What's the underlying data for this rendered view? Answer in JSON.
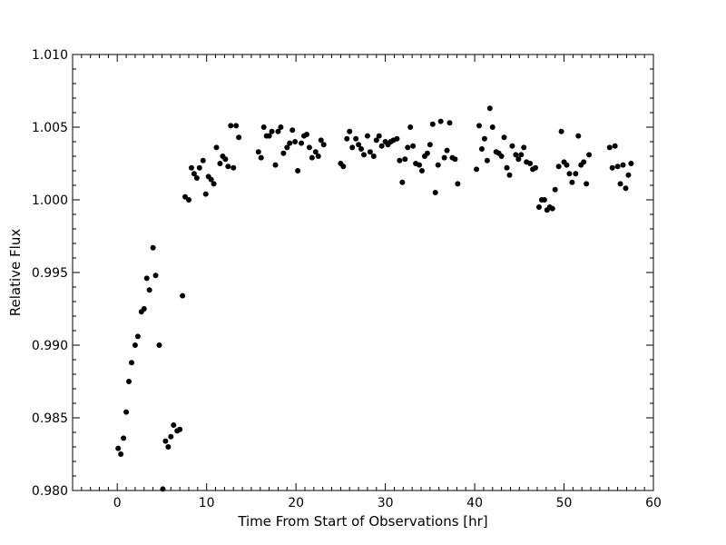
{
  "chart_data": {
    "type": "scatter",
    "title": "",
    "xlabel": "Time From Start of Observations [hr]",
    "ylabel": "Relative Flux",
    "xlim": [
      -5,
      60
    ],
    "ylim": [
      0.98,
      1.01
    ],
    "x_ticks": [
      0,
      10,
      20,
      30,
      40,
      50,
      60
    ],
    "x_tick_labels": [
      "0",
      "10",
      "20",
      "30",
      "40",
      "50",
      "60"
    ],
    "y_ticks": [
      0.98,
      0.985,
      0.99,
      0.995,
      1.0,
      1.005,
      1.01
    ],
    "y_tick_labels": [
      "0.980",
      "0.985",
      "0.990",
      "0.995",
      "1.000",
      "1.005",
      "1.010"
    ],
    "grid": false,
    "marker_color": "#000000",
    "series": [
      {
        "points": [
          [
            0.1,
            0.9829
          ],
          [
            0.4,
            0.9825
          ],
          [
            0.7,
            0.9836
          ],
          [
            1.0,
            0.9854
          ],
          [
            1.3,
            0.9875
          ],
          [
            1.6,
            0.9888
          ],
          [
            2.0,
            0.99
          ],
          [
            2.3,
            0.9906
          ],
          [
            2.7,
            0.9923
          ],
          [
            3.0,
            0.9925
          ],
          [
            3.3,
            0.9946
          ],
          [
            3.6,
            0.9938
          ],
          [
            4.0,
            0.9967
          ],
          [
            4.3,
            0.9948
          ],
          [
            4.7,
            0.99
          ],
          [
            5.1,
            0.9801
          ],
          [
            5.4,
            0.9834
          ],
          [
            5.7,
            0.983
          ],
          [
            6.0,
            0.9837
          ],
          [
            6.3,
            0.9845
          ],
          [
            6.7,
            0.9841
          ],
          [
            7.0,
            0.9842
          ],
          [
            7.3,
            0.9934
          ],
          [
            7.6,
            1.0002
          ],
          [
            8.0,
            1.0
          ],
          [
            8.3,
            1.0022
          ],
          [
            8.6,
            1.0018
          ],
          [
            8.9,
            1.0015
          ],
          [
            9.2,
            1.0022
          ],
          [
            9.6,
            1.0027
          ],
          [
            9.9,
            1.0004
          ],
          [
            10.2,
            1.0016
          ],
          [
            10.5,
            1.0014
          ],
          [
            10.8,
            1.0011
          ],
          [
            11.1,
            1.0036
          ],
          [
            11.5,
            1.0025
          ],
          [
            11.8,
            1.003
          ],
          [
            12.1,
            1.0028
          ],
          [
            12.4,
            1.0023
          ],
          [
            12.7,
            1.0051
          ],
          [
            13.0,
            1.0022
          ],
          [
            13.3,
            1.0051
          ],
          [
            13.6,
            1.0043
          ],
          [
            15.8,
            1.0033
          ],
          [
            16.1,
            1.0029
          ],
          [
            16.4,
            1.005
          ],
          [
            16.7,
            1.0044
          ],
          [
            17.0,
            1.0044
          ],
          [
            17.3,
            1.0047
          ],
          [
            17.7,
            1.0024
          ],
          [
            18.0,
            1.0047
          ],
          [
            18.3,
            1.005
          ],
          [
            18.6,
            1.0032
          ],
          [
            19.0,
            1.0036
          ],
          [
            19.3,
            1.0039
          ],
          [
            19.6,
            1.0048
          ],
          [
            19.9,
            1.004
          ],
          [
            20.2,
            1.002
          ],
          [
            20.6,
            1.0039
          ],
          [
            20.9,
            1.0044
          ],
          [
            21.2,
            1.0045
          ],
          [
            21.5,
            1.0036
          ],
          [
            21.8,
            1.0029
          ],
          [
            22.2,
            1.0033
          ],
          [
            22.5,
            1.003
          ],
          [
            22.8,
            1.0041
          ],
          [
            23.1,
            1.0038
          ],
          [
            25.0,
            1.0025
          ],
          [
            25.3,
            1.0023
          ],
          [
            25.7,
            1.0042
          ],
          [
            26.0,
            1.0047
          ],
          [
            26.3,
            1.0036
          ],
          [
            26.7,
            1.0042
          ],
          [
            27.0,
            1.0038
          ],
          [
            27.3,
            1.0035
          ],
          [
            27.6,
            1.0031
          ],
          [
            28.0,
            1.0044
          ],
          [
            28.3,
            1.0033
          ],
          [
            28.7,
            1.003
          ],
          [
            29.0,
            1.0041
          ],
          [
            29.3,
            1.0044
          ],
          [
            29.6,
            1.0037
          ],
          [
            30.0,
            1.004
          ],
          [
            30.3,
            1.0038
          ],
          [
            30.6,
            1.004
          ],
          [
            30.9,
            1.0041
          ],
          [
            31.3,
            1.0042
          ],
          [
            31.6,
            1.0027
          ],
          [
            31.9,
            1.0012
          ],
          [
            32.2,
            1.0028
          ],
          [
            32.5,
            1.0036
          ],
          [
            32.8,
            1.005
          ],
          [
            33.1,
            1.0037
          ],
          [
            33.4,
            1.0025
          ],
          [
            33.8,
            1.0024
          ],
          [
            34.1,
            1.002
          ],
          [
            34.4,
            1.003
          ],
          [
            34.7,
            1.0032
          ],
          [
            35.0,
            1.0038
          ],
          [
            35.3,
            1.0052
          ],
          [
            35.6,
            1.0005
          ],
          [
            35.9,
            1.0024
          ],
          [
            36.2,
            1.0054
          ],
          [
            36.6,
            1.0029
          ],
          [
            36.9,
            1.0034
          ],
          [
            37.2,
            1.0053
          ],
          [
            37.5,
            1.0029
          ],
          [
            37.8,
            1.0028
          ],
          [
            38.1,
            1.0011
          ],
          [
            40.2,
            1.0021
          ],
          [
            40.5,
            1.0051
          ],
          [
            40.8,
            1.0035
          ],
          [
            41.1,
            1.0042
          ],
          [
            41.4,
            1.0027
          ],
          [
            41.7,
            1.0063
          ],
          [
            42.0,
            1.005
          ],
          [
            42.4,
            1.0033
          ],
          [
            42.7,
            1.0032
          ],
          [
            43.0,
            1.003
          ],
          [
            43.3,
            1.0043
          ],
          [
            43.6,
            1.0022
          ],
          [
            43.9,
            1.0017
          ],
          [
            44.2,
            1.0037
          ],
          [
            44.6,
            1.0031
          ],
          [
            44.9,
            1.0028
          ],
          [
            45.2,
            1.0031
          ],
          [
            45.5,
            1.0036
          ],
          [
            45.8,
            1.0026
          ],
          [
            46.2,
            1.0025
          ],
          [
            46.5,
            1.0021
          ],
          [
            46.8,
            1.0022
          ],
          [
            47.2,
            0.9995
          ],
          [
            47.5,
            1.0
          ],
          [
            47.8,
            1.0
          ],
          [
            48.1,
            0.9993
          ],
          [
            48.4,
            0.9995
          ],
          [
            48.7,
            0.9994
          ],
          [
            49.0,
            1.0007
          ],
          [
            49.4,
            1.0023
          ],
          [
            49.7,
            1.0047
          ],
          [
            50.0,
            1.0026
          ],
          [
            50.3,
            1.0024
          ],
          [
            50.6,
            1.0018
          ],
          [
            50.9,
            1.0012
          ],
          [
            51.3,
            1.0018
          ],
          [
            51.6,
            1.0044
          ],
          [
            51.9,
            1.0024
          ],
          [
            52.2,
            1.0026
          ],
          [
            52.5,
            1.0011
          ],
          [
            52.8,
            1.0031
          ],
          [
            55.1,
            1.0036
          ],
          [
            55.4,
            1.0022
          ],
          [
            55.7,
            1.0037
          ],
          [
            56.0,
            1.0023
          ],
          [
            56.3,
            1.0011
          ],
          [
            56.6,
            1.0024
          ],
          [
            56.9,
            1.0008
          ],
          [
            57.2,
            1.0017
          ],
          [
            57.5,
            1.0025
          ]
        ]
      }
    ]
  }
}
